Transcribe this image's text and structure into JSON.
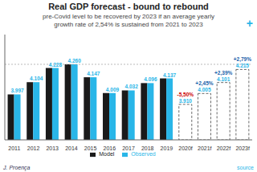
{
  "chart_data": {
    "type": "bar",
    "title": "Real GDP forecast - bound to rebound",
    "subtitle": "pre-Covid level to be recovered by 2023 if an average yearly\ngrowth rate of 2,54% is sustained from 2021 to 2023",
    "categories": [
      "2011",
      "2012",
      "2013",
      "2014",
      "2015",
      "2016",
      "2017",
      "2018",
      "2019",
      "2020f",
      "2021f",
      "2022f",
      "2023f"
    ],
    "series": [
      {
        "name": "Model",
        "color": "#1a1a1a",
        "values": [
          3.997,
          4.104,
          4.228,
          4.26,
          4.147,
          4.009,
          4.032,
          4.096,
          4.137,
          null,
          null,
          null,
          null
        ]
      },
      {
        "name": "Observed",
        "color": "#29b6e8",
        "data_labels": true,
        "values": [
          3.997,
          4.104,
          4.228,
          4.26,
          4.147,
          4.009,
          4.032,
          4.096,
          4.137,
          3.91,
          4.005,
          4.101,
          4.215
        ],
        "value_labels": [
          "3.997",
          "4.104",
          "4.228",
          "4.260",
          "4.147",
          "4.009",
          "4.032",
          "4.096",
          "4.137",
          "3.910",
          "4.005",
          "4.101",
          "4.215"
        ]
      }
    ],
    "ylim": [
      3.6,
      4.52
    ],
    "tick_labels": "x",
    "grid": false,
    "legend": "bottom",
    "hline": 4.26,
    "annotations": [
      {
        "x": "2020f",
        "text": "-5,50%",
        "color": "#cc0000"
      },
      {
        "x": "2021f",
        "text": "+2,45%",
        "color": "#1a5faa"
      },
      {
        "x": "2022f",
        "text": "+2,39%",
        "color": "#1a5faa"
      },
      {
        "x": "2023f",
        "text": "+2,79%",
        "color": "#1a5faa"
      }
    ],
    "footer_left": "J. Proença",
    "footer_right": "source",
    "corner_text": "+"
  }
}
